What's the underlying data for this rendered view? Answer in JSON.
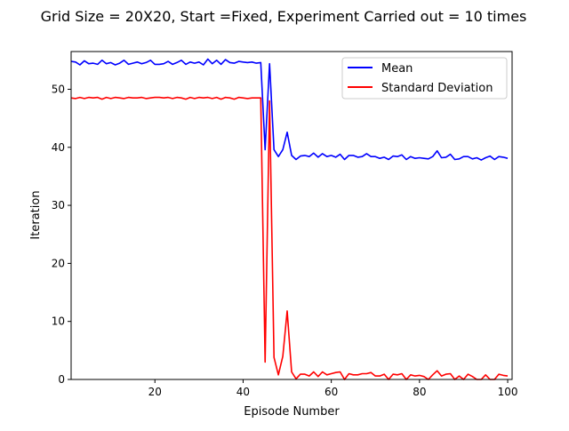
{
  "chart_data": {
    "type": "line",
    "title": "Grid Size = 20X20, Start =Fixed, Experiment Carried out = 10 times",
    "xlabel": "Episode Number",
    "ylabel": "Iteration",
    "xlim": [
      1,
      101
    ],
    "ylim": [
      0,
      56.5
    ],
    "xticks": [
      20,
      40,
      60,
      80,
      100
    ],
    "yticks": [
      0,
      10,
      20,
      30,
      40,
      50
    ],
    "grid": false,
    "legend_position": "top-right",
    "x": [
      1,
      2,
      3,
      4,
      5,
      6,
      7,
      8,
      9,
      10,
      11,
      12,
      13,
      14,
      15,
      16,
      17,
      18,
      19,
      20,
      21,
      22,
      23,
      24,
      25,
      26,
      27,
      28,
      29,
      30,
      31,
      32,
      33,
      34,
      35,
      36,
      37,
      38,
      39,
      40,
      41,
      42,
      43,
      44,
      45,
      46,
      47,
      48,
      49,
      50,
      51,
      52,
      53,
      54,
      55,
      56,
      57,
      58,
      59,
      60,
      61,
      62,
      63,
      64,
      65,
      66,
      67,
      68,
      69,
      70,
      71,
      72,
      73,
      74,
      75,
      76,
      77,
      78,
      79,
      80,
      81,
      82,
      83,
      84,
      85,
      86,
      87,
      88,
      89,
      90,
      91,
      92,
      93,
      94,
      95,
      96,
      97,
      98,
      99,
      100
    ],
    "series": [
      {
        "name": "Mean",
        "color": "#0000ff",
        "values": [
          54.8,
          54.7,
          54.2,
          54.9,
          54.4,
          54.5,
          54.3,
          55.0,
          54.4,
          54.6,
          54.2,
          54.5,
          55.0,
          54.3,
          54.5,
          54.7,
          54.4,
          54.6,
          55.0,
          54.3,
          54.3,
          54.4,
          54.8,
          54.3,
          54.6,
          55.0,
          54.3,
          54.7,
          54.5,
          54.7,
          54.2,
          55.2,
          54.4,
          55.0,
          54.3,
          55.1,
          54.6,
          54.5,
          54.8,
          54.7,
          54.6,
          54.7,
          54.5,
          54.6,
          39.6,
          54.4,
          39.6,
          38.4,
          39.6,
          42.6,
          38.6,
          37.9,
          38.5,
          38.6,
          38.4,
          39.0,
          38.3,
          38.9,
          38.4,
          38.6,
          38.3,
          38.8,
          37.9,
          38.6,
          38.6,
          38.3,
          38.4,
          38.9,
          38.4,
          38.4,
          38.1,
          38.3,
          37.9,
          38.5,
          38.4,
          38.7,
          37.9,
          38.4,
          38.1,
          38.2,
          38.1,
          38.0,
          38.4,
          39.4,
          38.2,
          38.3,
          38.8,
          37.9,
          38.0,
          38.4,
          38.4,
          38.0,
          38.2,
          37.8,
          38.2,
          38.5,
          37.9,
          38.4,
          38.3,
          38.1
        ]
      },
      {
        "name": "Standard Deviation",
        "color": "#ff0000",
        "values": [
          48.5,
          48.4,
          48.6,
          48.4,
          48.6,
          48.5,
          48.6,
          48.3,
          48.6,
          48.4,
          48.6,
          48.5,
          48.4,
          48.6,
          48.5,
          48.5,
          48.6,
          48.4,
          48.5,
          48.6,
          48.6,
          48.5,
          48.6,
          48.4,
          48.6,
          48.5,
          48.3,
          48.6,
          48.4,
          48.6,
          48.5,
          48.6,
          48.4,
          48.6,
          48.3,
          48.6,
          48.5,
          48.3,
          48.6,
          48.5,
          48.4,
          48.5,
          48.5,
          48.5,
          3.0,
          48.0,
          3.8,
          0.8,
          4.0,
          11.8,
          1.3,
          0.1,
          0.9,
          0.9,
          0.6,
          1.3,
          0.5,
          1.3,
          0.8,
          1.0,
          1.2,
          1.3,
          0.0,
          1.0,
          0.8,
          0.8,
          1.0,
          1.0,
          1.2,
          0.6,
          0.6,
          0.9,
          0.0,
          0.9,
          0.8,
          1.0,
          0.0,
          0.8,
          0.6,
          0.7,
          0.5,
          0.0,
          0.8,
          1.5,
          0.6,
          0.9,
          1.0,
          0.0,
          0.6,
          0.0,
          0.9,
          0.5,
          0.0,
          0.0,
          0.8,
          0.0,
          0.0,
          0.9,
          0.7,
          0.6
        ]
      }
    ]
  }
}
